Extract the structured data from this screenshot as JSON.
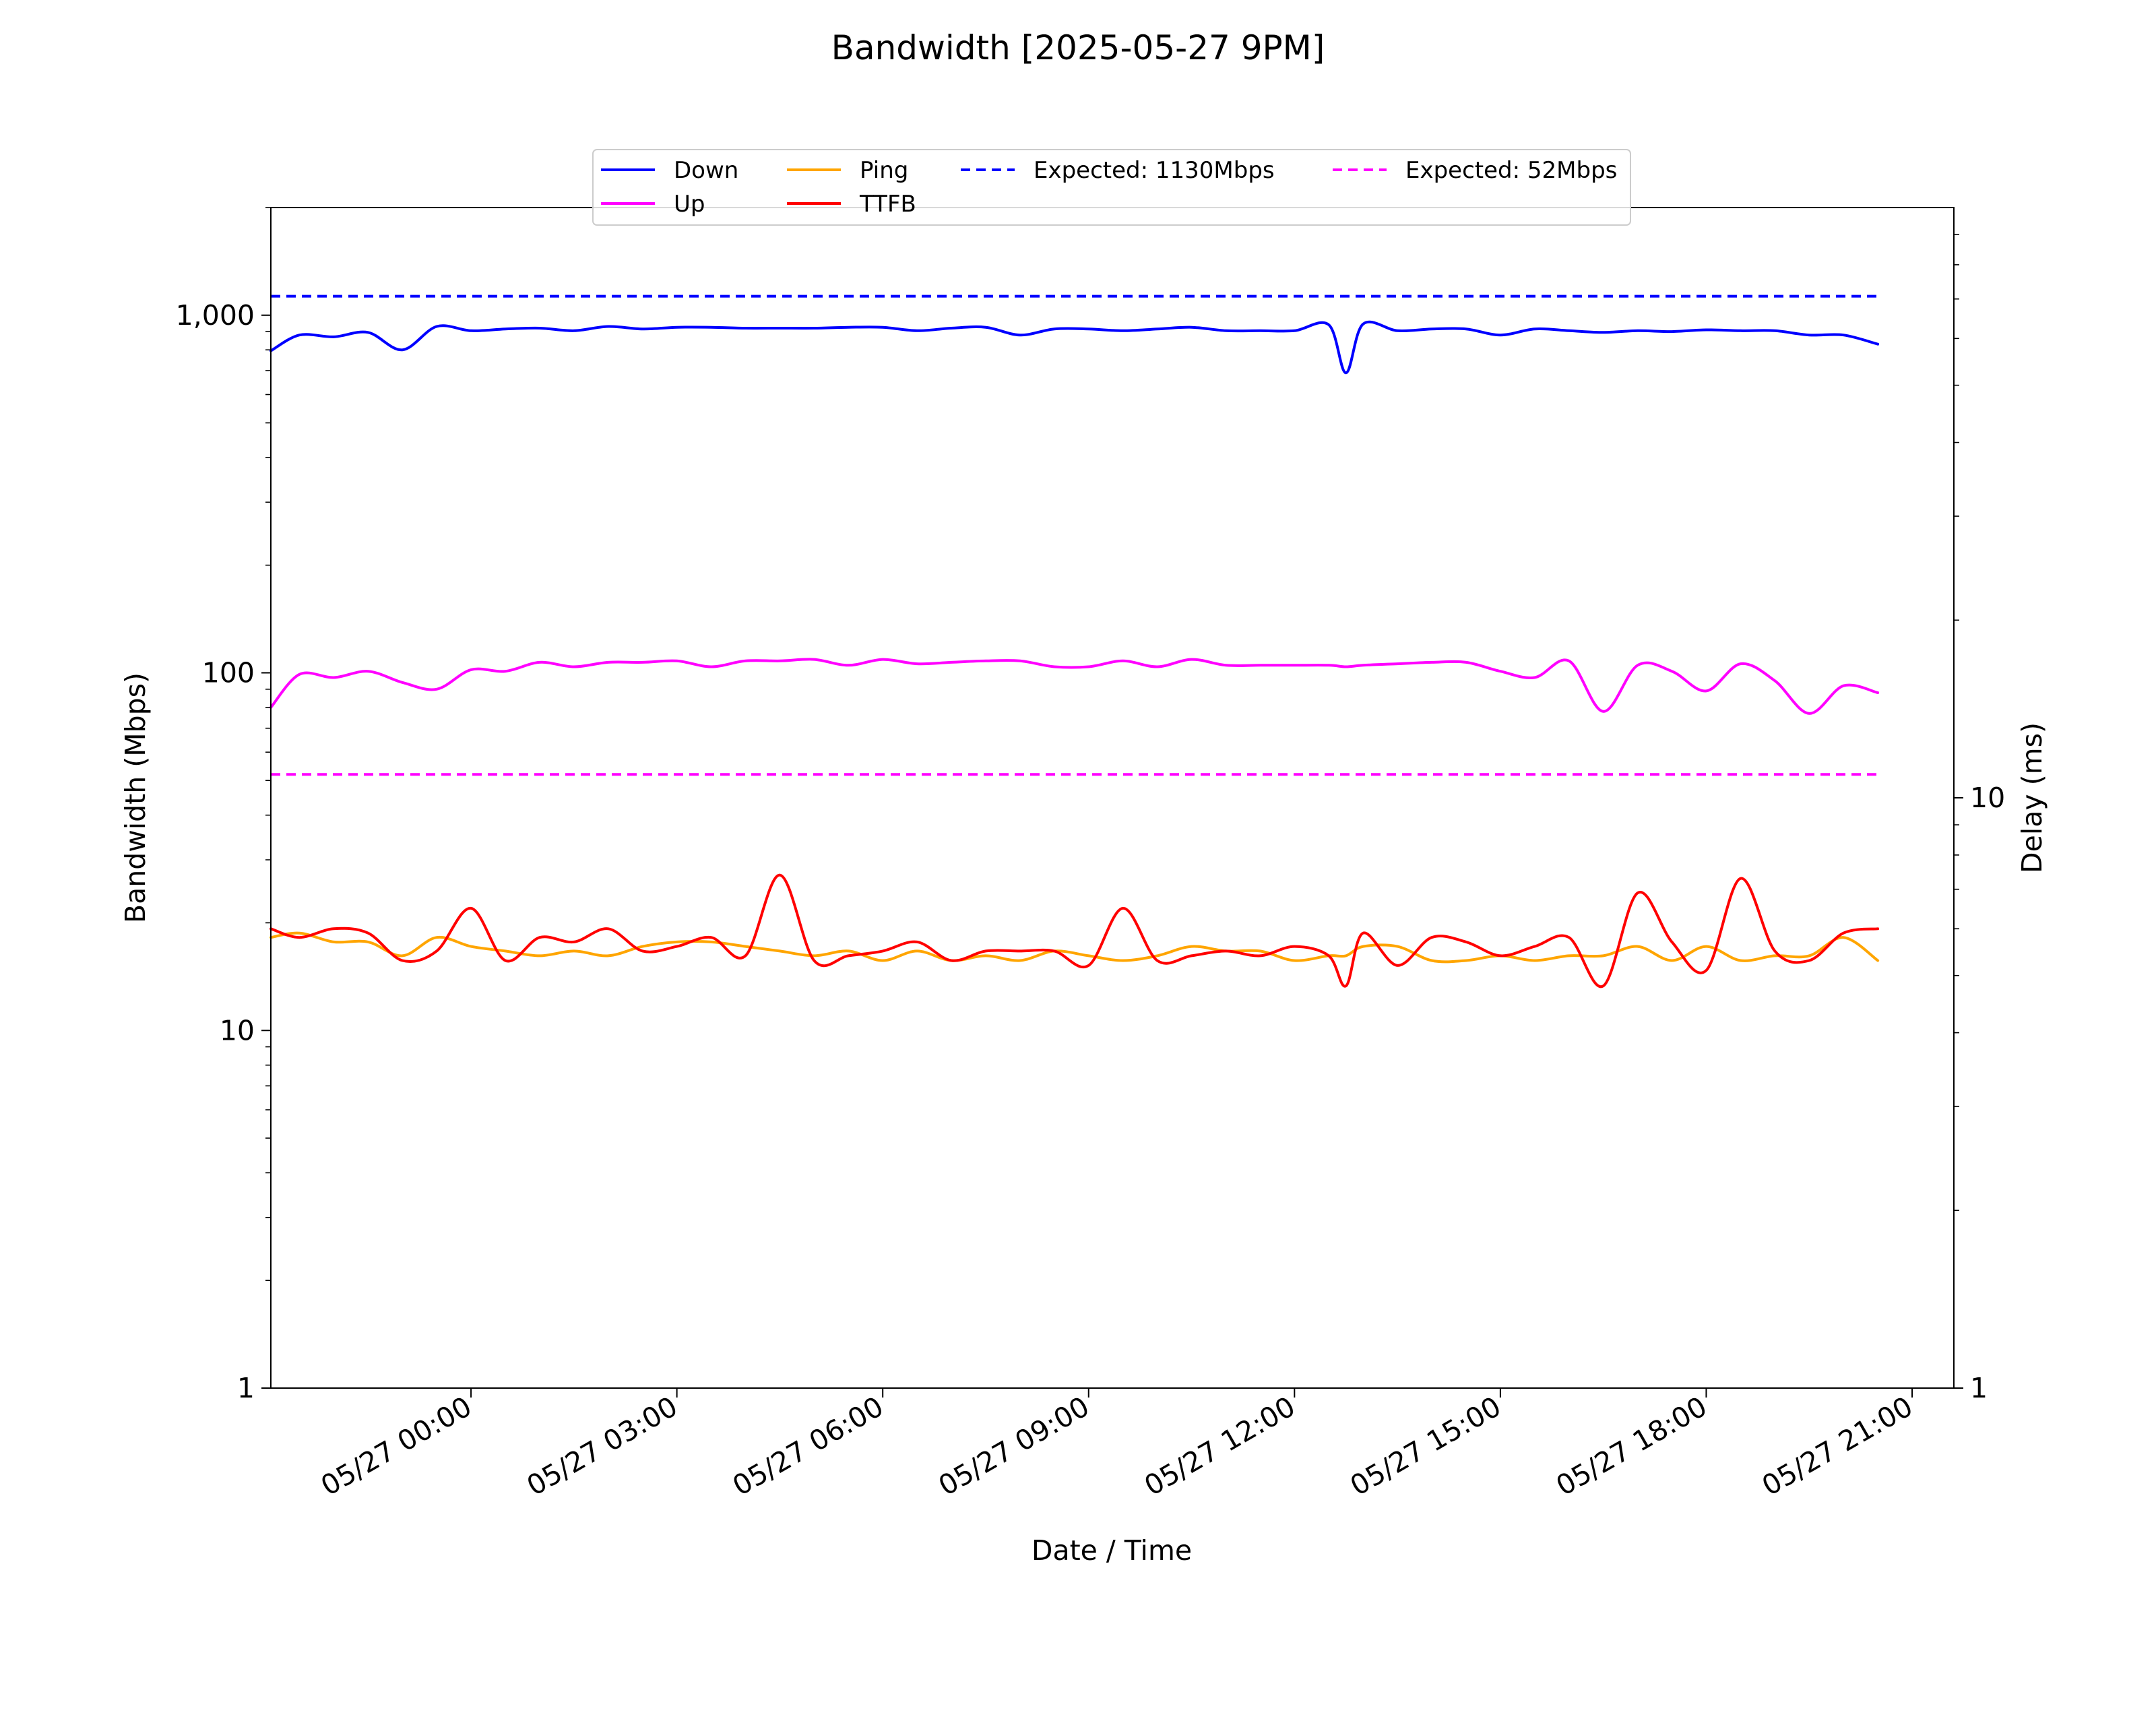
{
  "chart_data": {
    "type": "line",
    "title": "Bandwidth [2025-05-27 9PM]",
    "xlabel": "Date / Time",
    "ylabel": "Bandwidth (Mbps)",
    "y2label": "Delay (ms)",
    "y_scale": "log",
    "ylim": [
      1,
      2000
    ],
    "y2_scale": "log",
    "y2lim": [
      1,
      100
    ],
    "xlim": [
      "05/26 21:05",
      "05/27 21:00"
    ],
    "x_tick_labels": [
      "05/27 00:00",
      "05/27 03:00",
      "05/27 06:00",
      "05/27 09:00",
      "05/27 12:00",
      "05/27 15:00",
      "05/27 18:00",
      "05/27 21:00"
    ],
    "y_tick_labels": [
      "1",
      "10",
      "100",
      "1,000"
    ],
    "y2_tick_labels": [
      "1",
      "10"
    ],
    "legend_position": "top-center",
    "grid": false,
    "x": [
      "05/26 21:05",
      "05/26 21:30",
      "05/26 22:00",
      "05/26 22:30",
      "05/26 23:00",
      "05/26 23:30",
      "05/27 00:00",
      "05/27 00:30",
      "05/27 01:00",
      "05/27 01:30",
      "05/27 02:00",
      "05/27 02:30",
      "05/27 03:00",
      "05/27 03:30",
      "05/27 04:00",
      "05/27 04:30",
      "05/27 05:00",
      "05/27 05:30",
      "05/27 06:00",
      "05/27 06:30",
      "05/27 07:00",
      "05/27 07:30",
      "05/27 08:00",
      "05/27 08:30",
      "05/27 09:00",
      "05/27 09:30",
      "05/27 10:00",
      "05/27 10:30",
      "05/27 11:00",
      "05/27 11:30",
      "05/27 12:00",
      "05/27 12:30",
      "05/27 12:45",
      "05/27 13:00",
      "05/27 13:30",
      "05/27 14:00",
      "05/27 14:30",
      "05/27 15:00",
      "05/27 15:30",
      "05/27 16:00",
      "05/27 16:30",
      "05/27 17:00",
      "05/27 17:30",
      "05/27 18:00",
      "05/27 18:30",
      "05/27 19:00",
      "05/27 19:30",
      "05/27 20:00",
      "05/27 20:30"
    ],
    "series": [
      {
        "name": "Down",
        "axis": "left",
        "style": "solid",
        "color": "#0000ff",
        "values": [
          795,
          880,
          870,
          895,
          800,
          930,
          905,
          915,
          920,
          905,
          930,
          915,
          925,
          925,
          920,
          920,
          920,
          925,
          925,
          905,
          920,
          925,
          880,
          915,
          915,
          905,
          915,
          925,
          905,
          905,
          905,
          940,
          690,
          945,
          905,
          915,
          915,
          880,
          915,
          905,
          895,
          905,
          900,
          910,
          905,
          905,
          880,
          880,
          830
        ]
      },
      {
        "name": "Up",
        "axis": "left",
        "style": "solid",
        "color": "#ff00ff",
        "values": [
          80,
          99,
          97,
          101,
          94,
          90,
          102,
          101,
          107,
          104,
          107,
          107,
          108,
          104,
          108,
          108,
          109,
          105,
          109,
          106,
          107,
          108,
          108,
          104,
          104,
          108,
          104,
          109,
          105,
          105,
          105,
          105,
          104,
          105,
          106,
          107,
          107,
          101,
          97,
          108,
          78,
          105,
          101,
          89,
          106,
          95,
          77,
          92,
          88
        ]
      },
      {
        "name": "Ping",
        "axis": "right",
        "style": "solid",
        "color": "#ffa500",
        "values": [
          5.8,
          5.9,
          5.7,
          5.7,
          5.4,
          5.8,
          5.6,
          5.5,
          5.4,
          5.5,
          5.4,
          5.6,
          5.7,
          5.7,
          5.6,
          5.5,
          5.4,
          5.5,
          5.3,
          5.5,
          5.3,
          5.4,
          5.3,
          5.5,
          5.4,
          5.3,
          5.4,
          5.6,
          5.5,
          5.5,
          5.3,
          5.4,
          5.4,
          5.6,
          5.6,
          5.3,
          5.3,
          5.4,
          5.3,
          5.4,
          5.4,
          5.6,
          5.3,
          5.6,
          5.3,
          5.4,
          5.4,
          5.8,
          5.3
        ]
      },
      {
        "name": "TTFB",
        "axis": "right",
        "style": "solid",
        "color": "#ff0000",
        "values": [
          6.0,
          5.8,
          6.0,
          5.9,
          5.3,
          5.5,
          6.5,
          5.3,
          5.8,
          5.7,
          6.0,
          5.5,
          5.6,
          5.8,
          5.4,
          7.4,
          5.3,
          5.4,
          5.5,
          5.7,
          5.3,
          5.5,
          5.5,
          5.5,
          5.2,
          6.5,
          5.3,
          5.4,
          5.5,
          5.4,
          5.6,
          5.4,
          4.8,
          5.9,
          5.2,
          5.8,
          5.7,
          5.4,
          5.6,
          5.8,
          4.8,
          6.9,
          5.7,
          5.1,
          7.3,
          5.5,
          5.3,
          5.9,
          6.0
        ]
      },
      {
        "name": "Expected: 1130Mbps",
        "axis": "left",
        "style": "dashed",
        "color": "#0000ff",
        "constant": 1130
      },
      {
        "name": "Expected: 52Mbps",
        "axis": "left",
        "style": "dashed",
        "color": "#ff00ff",
        "constant": 52
      }
    ]
  }
}
